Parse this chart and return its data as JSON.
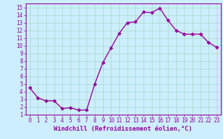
{
  "x": [
    0,
    1,
    2,
    3,
    4,
    5,
    6,
    7,
    8,
    9,
    10,
    11,
    12,
    13,
    14,
    15,
    16,
    17,
    18,
    19,
    20,
    21,
    22,
    23
  ],
  "y": [
    4.5,
    3.2,
    2.8,
    2.8,
    1.8,
    1.9,
    1.6,
    1.6,
    5.0,
    7.8,
    9.7,
    11.6,
    13.0,
    13.1,
    14.4,
    14.3,
    14.9,
    13.3,
    12.0,
    11.5,
    11.5,
    11.5,
    10.4,
    9.8
  ],
  "line_color": "#990099",
  "marker": "D",
  "markersize": 2.5,
  "linewidth": 1.0,
  "xlabel": "Windchill (Refroidissement éolien,°C)",
  "xlim": [
    -0.5,
    23.5
  ],
  "ylim": [
    1,
    15.5
  ],
  "yticks": [
    1,
    2,
    3,
    4,
    5,
    6,
    7,
    8,
    9,
    10,
    11,
    12,
    13,
    14,
    15
  ],
  "xticks": [
    0,
    1,
    2,
    3,
    4,
    5,
    6,
    7,
    8,
    9,
    10,
    11,
    12,
    13,
    14,
    15,
    16,
    17,
    18,
    19,
    20,
    21,
    22,
    23
  ],
  "bg_color": "#cceeff",
  "grid_color": "#aaddcc",
  "tick_color": "#990099",
  "label_color": "#990099",
  "tick_fontsize": 5.5,
  "xlabel_fontsize": 6.5
}
